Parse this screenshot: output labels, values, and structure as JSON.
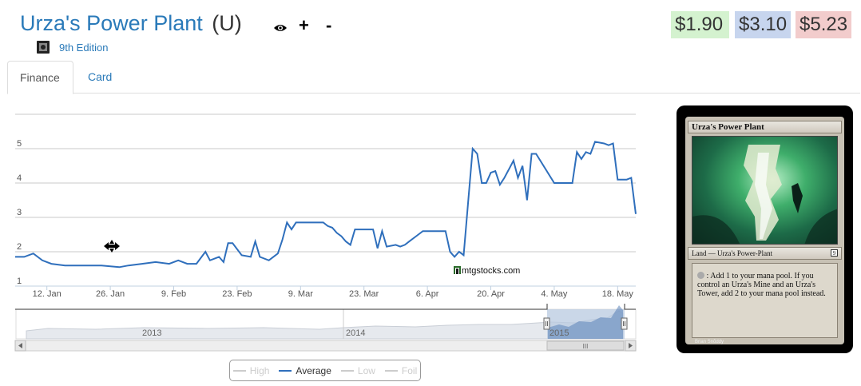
{
  "card": {
    "name": "Urza's Power Plant",
    "rarity": "(U)",
    "set_name": "9th Edition",
    "icons": [
      "eye-icon",
      "plus-icon",
      "minus-icon",
      "set-symbol-icon"
    ],
    "plus_label": "+",
    "minus_label": "-"
  },
  "prices": [
    {
      "label": "$1.90",
      "color": "#d4f2cf"
    },
    {
      "label": "$3.10",
      "color": "#c7d5ee"
    },
    {
      "label": "$5.23",
      "color": "#f2cccc"
    }
  ],
  "tabs": [
    {
      "label": "Finance",
      "active": true
    },
    {
      "label": "Card",
      "active": false
    }
  ],
  "watermark": "mtgstocks.com",
  "legend": [
    {
      "label": "High",
      "on": false
    },
    {
      "label": "Average",
      "on": true
    },
    {
      "label": "Low",
      "on": false
    },
    {
      "label": "Foil",
      "on": false
    }
  ],
  "navigator": {
    "years": [
      "2013",
      "2014",
      "2015"
    ],
    "scrollbar_grip": "III"
  },
  "card_image": {
    "title": "Urza's Power Plant",
    "type_line": "Land — Urza's Power-Plant",
    "set_symbol": "9",
    "rules_text": " : Add 1 to your mana pool. If you control an Urza's Mine and an Urza's Tower, add 2 to your mana pool instead.",
    "artist": "Brian Snõddy"
  },
  "chart_data": {
    "type": "line",
    "series": [
      {
        "name": "Average",
        "color": "#2f6fbc",
        "values": [
          [
            "2015-01-05",
            1.85
          ],
          [
            "2015-01-07",
            1.85
          ],
          [
            "2015-01-09",
            1.95
          ],
          [
            "2015-01-11",
            1.75
          ],
          [
            "2015-01-13",
            1.65
          ],
          [
            "2015-01-16",
            1.6
          ],
          [
            "2015-01-20",
            1.6
          ],
          [
            "2015-01-24",
            1.6
          ],
          [
            "2015-01-28",
            1.55
          ],
          [
            "2015-01-30",
            1.6
          ],
          [
            "2015-02-02",
            1.65
          ],
          [
            "2015-02-05",
            1.7
          ],
          [
            "2015-02-08",
            1.65
          ],
          [
            "2015-02-10",
            1.75
          ],
          [
            "2015-02-12",
            1.65
          ],
          [
            "2015-02-14",
            1.65
          ],
          [
            "2015-02-16",
            2.0
          ],
          [
            "2015-02-17",
            1.75
          ],
          [
            "2015-02-19",
            1.85
          ],
          [
            "2015-02-20",
            1.7
          ],
          [
            "2015-02-21",
            2.25
          ],
          [
            "2015-02-22",
            2.25
          ],
          [
            "2015-02-24",
            1.9
          ],
          [
            "2015-02-26",
            1.85
          ],
          [
            "2015-02-27",
            2.3
          ],
          [
            "2015-02-28",
            1.85
          ],
          [
            "2015-03-02",
            1.75
          ],
          [
            "2015-03-03",
            1.85
          ],
          [
            "2015-03-04",
            1.95
          ],
          [
            "2015-03-05",
            2.35
          ],
          [
            "2015-03-06",
            2.85
          ],
          [
            "2015-03-07",
            2.65
          ],
          [
            "2015-03-08",
            2.85
          ],
          [
            "2015-03-14",
            2.85
          ],
          [
            "2015-03-15",
            2.75
          ],
          [
            "2015-03-16",
            2.7
          ],
          [
            "2015-03-17",
            2.55
          ],
          [
            "2015-03-18",
            2.45
          ],
          [
            "2015-03-19",
            2.3
          ],
          [
            "2015-03-20",
            2.2
          ],
          [
            "2015-03-21",
            2.65
          ],
          [
            "2015-03-25",
            2.65
          ],
          [
            "2015-03-26",
            2.1
          ],
          [
            "2015-03-27",
            2.6
          ],
          [
            "2015-03-28",
            2.15
          ],
          [
            "2015-03-30",
            2.2
          ],
          [
            "2015-03-31",
            2.15
          ],
          [
            "2015-04-01",
            2.2
          ],
          [
            "2015-04-02",
            2.3
          ],
          [
            "2015-04-04",
            2.5
          ],
          [
            "2015-04-05",
            2.6
          ],
          [
            "2015-04-10",
            2.6
          ],
          [
            "2015-04-11",
            2.0
          ],
          [
            "2015-04-12",
            1.85
          ],
          [
            "2015-04-13",
            2.0
          ],
          [
            "2015-04-14",
            1.9
          ],
          [
            "2015-04-16",
            5.0
          ],
          [
            "2015-04-17",
            4.85
          ],
          [
            "2015-04-18",
            4.0
          ],
          [
            "2015-04-19",
            4.0
          ],
          [
            "2015-04-20",
            4.3
          ],
          [
            "2015-04-21",
            4.35
          ],
          [
            "2015-04-22",
            3.95
          ],
          [
            "2015-04-23",
            4.15
          ],
          [
            "2015-04-24",
            4.4
          ],
          [
            "2015-04-25",
            4.65
          ],
          [
            "2015-04-26",
            4.15
          ],
          [
            "2015-04-27",
            4.5
          ],
          [
            "2015-04-28",
            3.5
          ],
          [
            "2015-04-29",
            4.85
          ],
          [
            "2015-04-30",
            4.85
          ],
          [
            "2015-05-04",
            4.0
          ],
          [
            "2015-05-08",
            4.0
          ],
          [
            "2015-05-09",
            4.9
          ],
          [
            "2015-05-10",
            4.7
          ],
          [
            "2015-05-11",
            4.9
          ],
          [
            "2015-05-12",
            4.85
          ],
          [
            "2015-05-13",
            5.2
          ],
          [
            "2015-05-15",
            5.15
          ],
          [
            "2015-05-16",
            5.1
          ],
          [
            "2015-05-17",
            5.15
          ],
          [
            "2015-05-18",
            4.1
          ],
          [
            "2015-05-20",
            4.1
          ],
          [
            "2015-05-21",
            4.15
          ],
          [
            "2015-05-22",
            3.1
          ]
        ]
      }
    ],
    "x_range": [
      "2015-01-05",
      "2015-05-22"
    ],
    "x_ticks": [
      {
        "date": "2015-01-12",
        "label": "12. Jan"
      },
      {
        "date": "2015-01-26",
        "label": "26. Jan"
      },
      {
        "date": "2015-02-09",
        "label": "9. Feb"
      },
      {
        "date": "2015-02-23",
        "label": "23. Feb"
      },
      {
        "date": "2015-03-09",
        "label": "9. Mar"
      },
      {
        "date": "2015-03-23",
        "label": "23. Mar"
      },
      {
        "date": "2015-04-06",
        "label": "6. Apr"
      },
      {
        "date": "2015-04-20",
        "label": "20. Apr"
      },
      {
        "date": "2015-05-04",
        "label": "4. May"
      },
      {
        "date": "2015-05-18",
        "label": "18. May"
      }
    ],
    "ylim": [
      1,
      6
    ],
    "y_ticks": [
      "1",
      "2",
      "3",
      "4",
      "5"
    ],
    "grid": true
  }
}
